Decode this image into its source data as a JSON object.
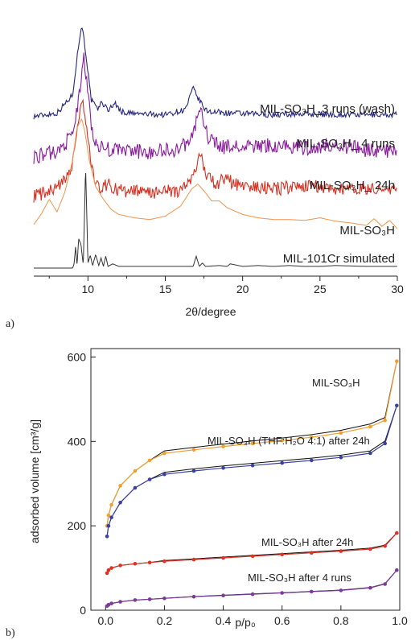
{
  "chart_data": [
    {
      "panel": "a)",
      "type": "line",
      "xlabel": "2θ/degree",
      "ylabel": "",
      "xlim": [
        6.5,
        30
      ],
      "xticks": [
        "10",
        "15",
        "20",
        "25",
        "30"
      ],
      "series": [
        {
          "name": "MIL-SO₃H_3 runs (wash)",
          "color": "#262680",
          "noise": 0.35,
          "x": [
            6.5,
            8,
            9,
            9.3,
            9.6,
            9.9,
            10.2,
            10.6,
            10.9,
            11.3,
            11.7,
            12.2,
            13,
            15,
            16.3,
            16.8,
            17.1,
            17.6,
            18.2,
            19,
            20,
            22,
            24,
            26,
            28,
            30
          ],
          "y": [
            1,
            1.4,
            3.5,
            8,
            12,
            8,
            3,
            1.8,
            2.7,
            1.7,
            2.6,
            1.5,
            1.3,
            1.2,
            1.8,
            4.3,
            3.2,
            1.7,
            1.5,
            1.4,
            1.3,
            1.2,
            1.3,
            1.2,
            1.2,
            1.2
          ]
        },
        {
          "name": "MIL-SO₃H_ 4 runs",
          "color": "#8a1a9e",
          "noise": 0.9,
          "x": [
            6.5,
            8,
            9,
            9.4,
            9.7,
            10,
            10.3,
            10.8,
            12,
            14,
            16,
            16.8,
            17.2,
            17.7,
            18.5,
            20,
            22,
            24,
            26,
            28,
            30
          ],
          "y": [
            1.5,
            2,
            4,
            8,
            13.5,
            9,
            4,
            2.5,
            2.2,
            2,
            2.4,
            4,
            7.5,
            4,
            2.6,
            2.6,
            2.8,
            2.5,
            2.9,
            2.3,
            2.1
          ]
        },
        {
          "name": "MIL-SO₃H_ 24h",
          "color": "#d62f1f",
          "noise": 0.8,
          "x": [
            6.5,
            8,
            9,
            9.4,
            9.7,
            10,
            10.4,
            10.9,
            11.3,
            12,
            14,
            16,
            16.8,
            17.2,
            17.7,
            18.3,
            18.8,
            19.5,
            20.5,
            22,
            24,
            26,
            28,
            30
          ],
          "y": [
            1.4,
            2.2,
            5,
            10.5,
            12.5,
            8,
            3.2,
            2.3,
            2.8,
            2,
            1.8,
            2,
            3.5,
            6.5,
            3.8,
            2.5,
            3.6,
            2.8,
            2.5,
            2.2,
            2.6,
            2.3,
            2.2,
            2
          ]
        },
        {
          "name": "MIL-SO₃H",
          "color": "#f2924a",
          "noise": 0,
          "x": [
            6.5,
            7,
            7.5,
            8,
            8.5,
            9,
            9.3,
            9.6,
            9.8,
            10.1,
            10.5,
            11,
            11.5,
            12,
            13,
            14,
            15,
            16,
            16.7,
            17.1,
            17.5,
            18,
            18.5,
            19,
            19.5,
            20,
            21,
            22,
            23,
            24,
            25,
            26,
            27,
            28,
            28.5,
            29,
            29.5,
            30
          ],
          "y": [
            2,
            3.3,
            5,
            3.5,
            5.8,
            9.5,
            13.5,
            14.5,
            13,
            9.5,
            6.5,
            5,
            3.8,
            3.2,
            2.8,
            2.6,
            3,
            4.2,
            6.2,
            6.8,
            6,
            4.8,
            4.8,
            4,
            3.6,
            3.2,
            2.8,
            2.6,
            2.6,
            2.5,
            2.8,
            2.4,
            2.2,
            1.9,
            2.7,
            1.8,
            2.5,
            1.5
          ]
        },
        {
          "name": "MIL-101Cr simulated",
          "color": "#333333",
          "noise": 0,
          "x": [
            6.5,
            9,
            9.1,
            9.2,
            9.3,
            9.4,
            9.55,
            9.7,
            9.85,
            10.0,
            10.15,
            10.3,
            10.5,
            10.7,
            10.85,
            11.0,
            11.15,
            11.3,
            11.6,
            12,
            13,
            15,
            16.8,
            17.0,
            17.2,
            17.4,
            17.6,
            18.5,
            19,
            19.2,
            20,
            21,
            22,
            23,
            24,
            25,
            26,
            28,
            30
          ],
          "y": [
            0,
            0,
            0.4,
            2.5,
            0.3,
            3.5,
            2.8,
            0.3,
            12,
            0.6,
            1.5,
            0.3,
            1.6,
            0.3,
            1.2,
            0.2,
            1.4,
            0.2,
            0.5,
            0.2,
            0.2,
            0.2,
            0.2,
            1.4,
            0.2,
            0.6,
            0.2,
            0.3,
            0.2,
            0.5,
            0.2,
            0.3,
            0.2,
            0.3,
            0.2,
            0.2,
            0.3,
            0.2,
            0.2
          ]
        }
      ]
    },
    {
      "panel": "b)",
      "type": "line",
      "xlabel": "p/p₀",
      "ylabel": "adsorbed volume [cm³/g]",
      "xlim": [
        -0.05,
        1.0
      ],
      "ylim": [
        0,
        620
      ],
      "xticks": [
        "0.0",
        "0.2",
        "0.4",
        "0.6",
        "0.8",
        "1.0"
      ],
      "yticks": [
        "0",
        "200",
        "400",
        "600"
      ],
      "series": [
        {
          "name": "MIL-SO₃H",
          "color": "#f0a030",
          "x": [
            0.005,
            0.01,
            0.02,
            0.05,
            0.1,
            0.15,
            0.2,
            0.3,
            0.4,
            0.5,
            0.6,
            0.7,
            0.8,
            0.9,
            0.95,
            0.99
          ],
          "y": [
            200,
            225,
            250,
            295,
            330,
            355,
            372,
            380,
            388,
            395,
            402,
            410,
            420,
            435,
            450,
            590
          ]
        },
        {
          "name": "MIL-SO₃H (THF:H₂O 4:1) after 24h",
          "color": "#3a40a0",
          "x": [
            0.005,
            0.01,
            0.02,
            0.05,
            0.1,
            0.15,
            0.2,
            0.3,
            0.4,
            0.5,
            0.6,
            0.7,
            0.8,
            0.9,
            0.95,
            0.99
          ],
          "y": [
            175,
            200,
            220,
            255,
            290,
            310,
            322,
            330,
            337,
            343,
            349,
            355,
            362,
            372,
            395,
            485
          ]
        },
        {
          "name": "MIL-SO₃H after 24h",
          "color": "#e03020",
          "x": [
            0.005,
            0.01,
            0.02,
            0.05,
            0.1,
            0.15,
            0.2,
            0.3,
            0.4,
            0.5,
            0.6,
            0.7,
            0.8,
            0.9,
            0.95,
            0.99
          ],
          "y": [
            88,
            95,
            100,
            106,
            110,
            113,
            116,
            120,
            124,
            128,
            132,
            136,
            140,
            145,
            152,
            183
          ]
        },
        {
          "name": "MIL-SO₃H after 4 runs",
          "color": "#7a3a9a",
          "x": [
            0.005,
            0.01,
            0.02,
            0.05,
            0.1,
            0.15,
            0.2,
            0.3,
            0.4,
            0.5,
            0.6,
            0.7,
            0.8,
            0.9,
            0.95,
            0.99
          ],
          "y": [
            10,
            13,
            16,
            20,
            24,
            26,
            28,
            32,
            35,
            38,
            41,
            44,
            47,
            53,
            62,
            95
          ]
        }
      ]
    }
  ]
}
